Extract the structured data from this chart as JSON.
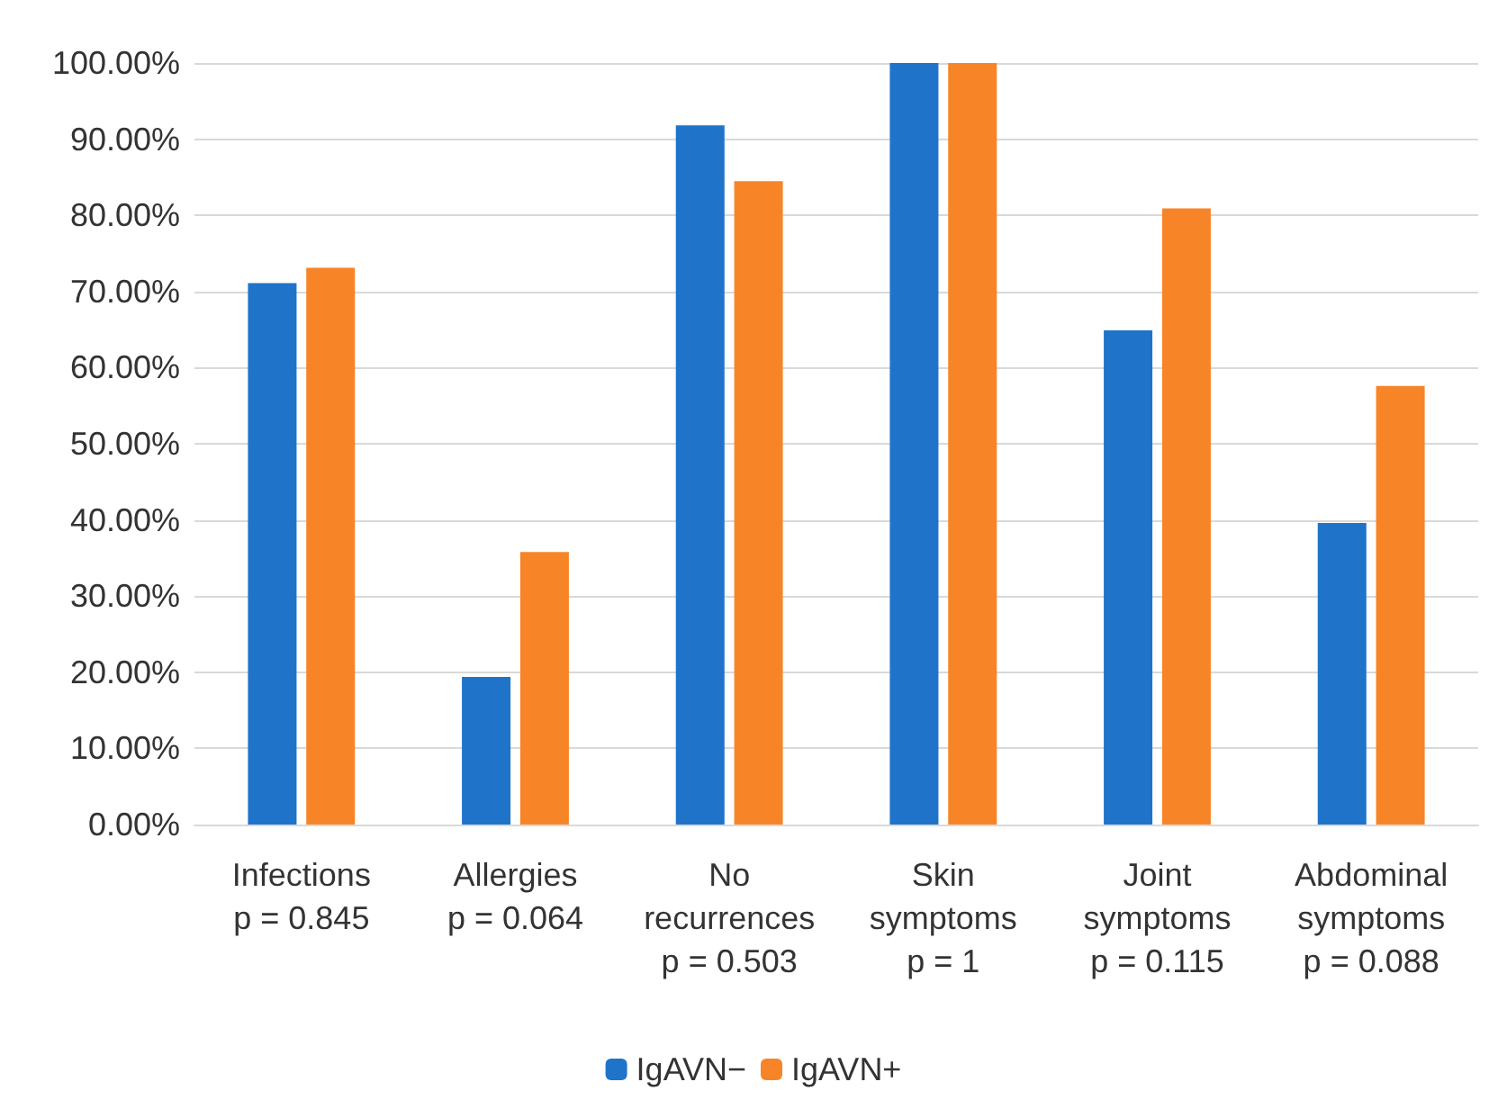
{
  "chart_data": {
    "type": "bar",
    "categories": [
      "Infections\np = 0.845",
      "Allergies\np = 0.064",
      "No\nrecurrences\np = 0.503",
      "Skin\nsymptoms\np = 1",
      "Joint\nsymptoms\np = 0.115",
      "Abdominal\nsymptoms\np = 0.088"
    ],
    "series": [
      {
        "name": "IgAVN−",
        "color": "#1f74c9",
        "values": [
          71.1,
          19.4,
          91.8,
          100,
          64.9,
          39.6
        ]
      },
      {
        "name": "IgAVN+",
        "color": "#f88428",
        "values": [
          73.1,
          35.8,
          84.5,
          100,
          80.9,
          57.6
        ]
      }
    ],
    "ylim": [
      0,
      100
    ],
    "yticks": [
      {
        "value": 0,
        "label": "0.00%"
      },
      {
        "value": 10,
        "label": "10.00%"
      },
      {
        "value": 20,
        "label": "20.00%"
      },
      {
        "value": 30,
        "label": "30.00%"
      },
      {
        "value": 40,
        "label": "40.00%"
      },
      {
        "value": 50,
        "label": "50.00%"
      },
      {
        "value": 60,
        "label": "60.00%"
      },
      {
        "value": 70,
        "label": "70.00%"
      },
      {
        "value": 80,
        "label": "80.00%"
      },
      {
        "value": 90,
        "label": "90.00%"
      },
      {
        "value": 100,
        "label": "100.00%"
      }
    ],
    "grid": "y",
    "legend": "bottom"
  }
}
